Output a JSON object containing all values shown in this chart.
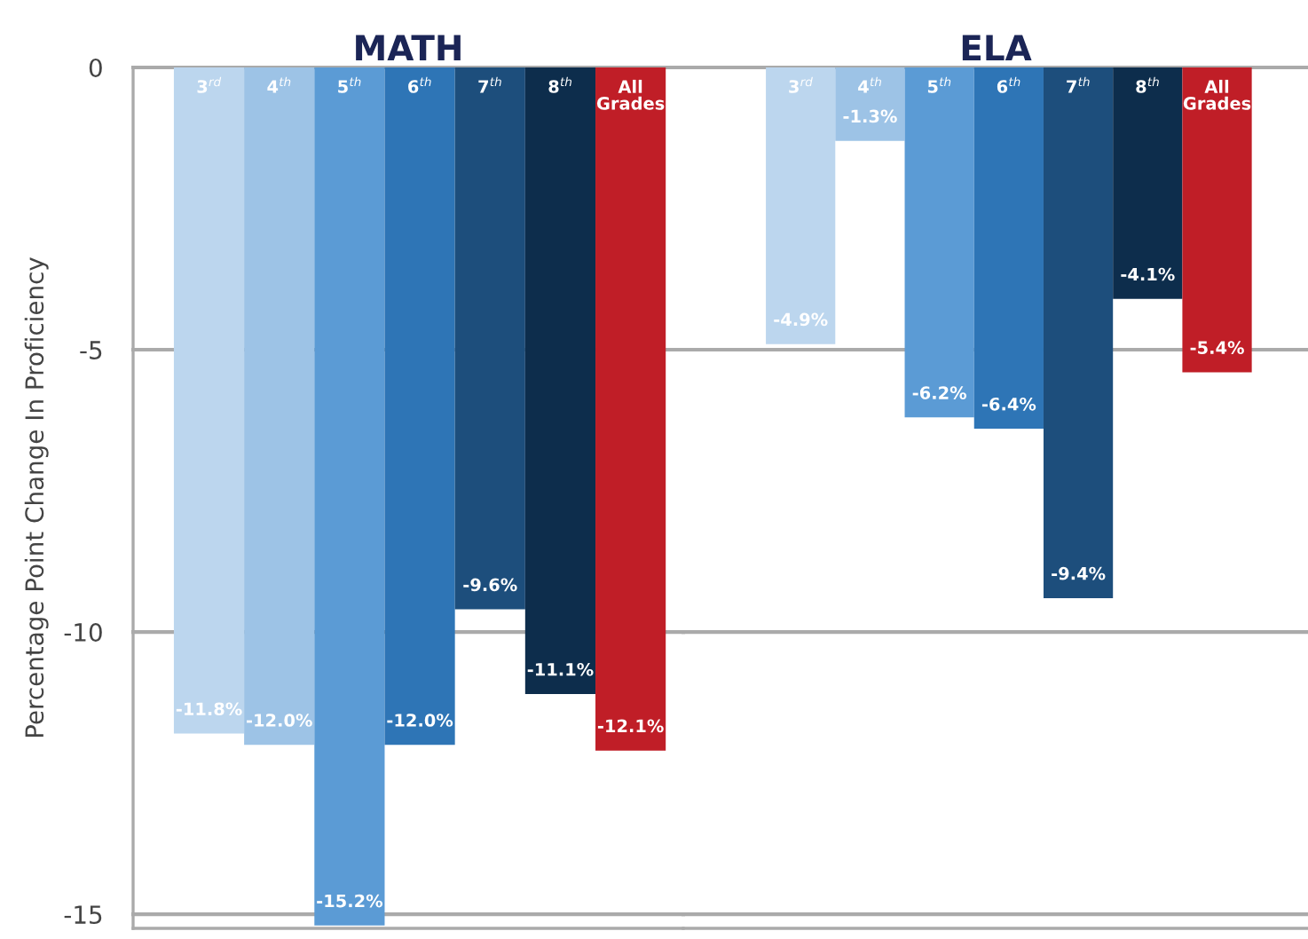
{
  "chart_data": [
    {
      "type": "bar",
      "title": "MATH",
      "ylabel": "Percentage Point Change In Proficiency",
      "categories": [
        "3$^{rd}$",
        "4$^{th}$",
        "5$^{th}$",
        "6$^{th}$",
        "7$^{th}$",
        "8$^{th}$",
        "All\nGrades"
      ],
      "values": [
        -11.8,
        -12.0,
        -15.2,
        -12.0,
        -9.6,
        -11.1,
        -12.1
      ],
      "value_labels": [
        "-11.8%",
        "-12.0%",
        "-15.2%",
        "-12.0%",
        "-9.6%",
        "-11.1%",
        "-12.1%"
      ],
      "colors": [
        "#bcd6ee",
        "#9dc3e6",
        "#5b9bd5",
        "#2e75b6",
        "#1d4e7c",
        "#0d2d4c",
        "#c01e27"
      ],
      "ylim": [
        -15.25,
        0
      ],
      "yticks": [
        0,
        -5,
        -10,
        -15
      ],
      "grid": "y"
    },
    {
      "type": "bar",
      "title": "ELA",
      "categories": [
        "3$^{rd}$",
        "4$^{th}$",
        "5$^{th}$",
        "6$^{th}$",
        "7$^{th}$",
        "8$^{th}$",
        "All\nGrades"
      ],
      "values": [
        -4.9,
        -1.3,
        -6.2,
        -6.4,
        -9.4,
        -4.1,
        -5.4
      ],
      "value_labels": [
        "-4.9%",
        "-1.3%",
        "-6.2%",
        "-6.4%",
        "-9.4%",
        "-4.1%",
        "-5.4%"
      ],
      "colors": [
        "#bcd6ee",
        "#9dc3e6",
        "#5b9bd5",
        "#2e75b6",
        "#1d4e7c",
        "#0d2d4c",
        "#c01e27"
      ],
      "ylim": [
        -15.25,
        0
      ],
      "yticks": [
        0,
        -5,
        -10,
        -15
      ],
      "grid": "y",
      "tick_labels": "x"
    }
  ]
}
